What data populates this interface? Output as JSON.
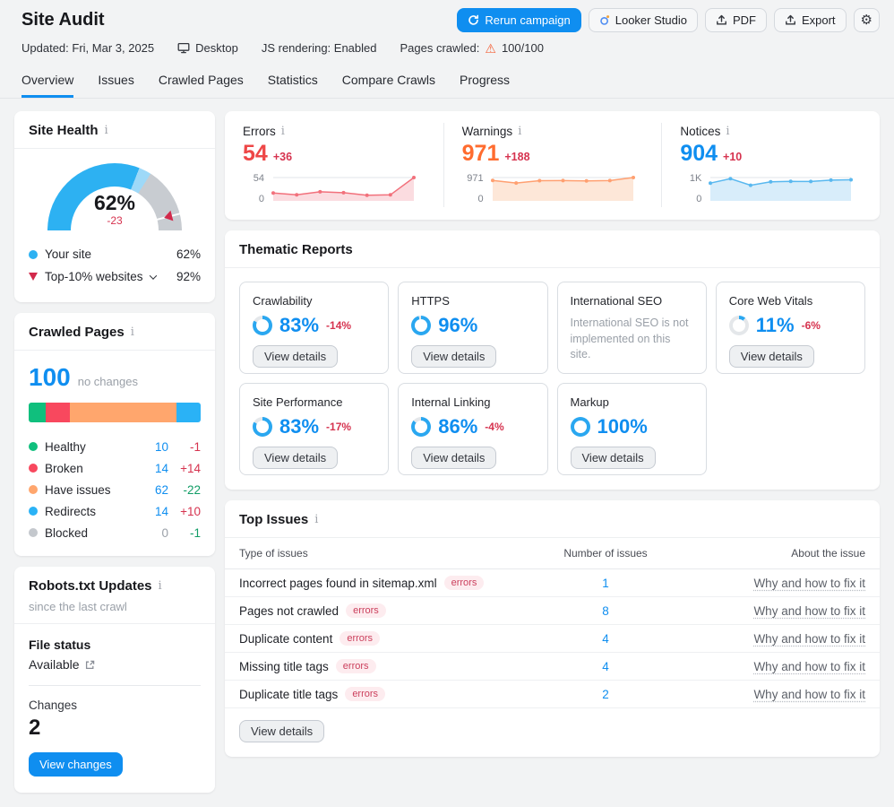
{
  "colors": {
    "accent": "#0f8ef0",
    "ring_on": "#2aa7f0",
    "ring_off": "#e4e7ea",
    "red": "#d6334f",
    "green": "#119d66",
    "gray": "#9aa0a8"
  },
  "icons": {
    "info": "i",
    "gear": "⚙",
    "warning": "⚠"
  },
  "header": {
    "title": "Site Audit",
    "updated": "Updated: Fri, Mar 3, 2025",
    "device": "Desktop",
    "js": "JS rendering: Enabled",
    "pages_label": "Pages crawled:",
    "pages_value": "100/100",
    "rerun": "Rerun campaign",
    "looker": "Looker Studio",
    "pdf": "PDF",
    "export": "Export"
  },
  "tabs": [
    {
      "label": "Overview"
    },
    {
      "label": "Issues"
    },
    {
      "label": "Crawled Pages"
    },
    {
      "label": "Statistics"
    },
    {
      "label": "Compare Crawls"
    },
    {
      "label": "Progress"
    }
  ],
  "site_health": {
    "title": "Site Health",
    "score": "62%",
    "delta": "-23",
    "gauge": {
      "value": 62,
      "secondary_to": 68,
      "benchmark": 92,
      "color": "#2db1f2",
      "secondary_color": "#9ed9f8",
      "track_color": "#c8ccd1"
    },
    "legend": [
      {
        "label": "Your site",
        "value": "62%",
        "marker_color": "#2db1f2"
      },
      {
        "label": "Top-10% websites",
        "value": "92%"
      }
    ]
  },
  "crawled_pages": {
    "title": "Crawled Pages",
    "total": "100",
    "note": "no changes",
    "segments": [
      {
        "label": "Healthy",
        "pct": 10,
        "color": "#10bf7d",
        "value": "10",
        "value_color": "#0f8ef0",
        "change": "-1",
        "change_color": "#d6334f"
      },
      {
        "label": "Broken",
        "pct": 14,
        "color": "#f8485e",
        "value": "14",
        "value_color": "#0f8ef0",
        "change": "+14",
        "change_color": "#d6334f"
      },
      {
        "label": "Have issues",
        "pct": 62,
        "color": "#ffa66d",
        "value": "62",
        "value_color": "#0f8ef0",
        "change": "-22",
        "change_color": "#119d66"
      },
      {
        "label": "Redirects",
        "pct": 14,
        "color": "#2ab2f6",
        "value": "14",
        "value_color": "#0f8ef0",
        "change": "+10",
        "change_color": "#d6334f"
      },
      {
        "label": "Blocked",
        "pct": 0,
        "color": "#c4c8cd",
        "value": "0",
        "value_color": "#9aa0a8",
        "change": "-1",
        "change_color": "#119d66"
      }
    ]
  },
  "robots": {
    "title": "Robots.txt Updates",
    "subtitle": "since the last crawl",
    "file_status_label": "File status",
    "file_status": "Available",
    "changes_label": "Changes",
    "changes": "2",
    "button": "View changes"
  },
  "summary": [
    {
      "label": "Errors",
      "value": "54",
      "delta": "+36",
      "value_color": "#ee4747",
      "axis_max": "54",
      "axis_min": "0",
      "spark": {
        "max": 54,
        "values": [
          18,
          14,
          21,
          19,
          13,
          14,
          54
        ],
        "line": "#f2717c",
        "fill": "#fbdce0"
      }
    },
    {
      "label": "Warnings",
      "value": "971",
      "delta": "+188",
      "value_color": "#ff6c2f",
      "axis_max": "971",
      "axis_min": "0",
      "spark": {
        "max": 971,
        "values": [
          850,
          745,
          840,
          845,
          830,
          845,
          971
        ],
        "line": "#ffa071",
        "fill": "#fde7d8"
      }
    },
    {
      "label": "Notices",
      "value": "904",
      "delta": "+10",
      "value_color": "#0f8ef0",
      "axis_max": "1K",
      "axis_min": "0",
      "spark": {
        "max": 1000,
        "values": [
          760,
          950,
          670,
          820,
          835,
          830,
          890,
          904
        ],
        "line": "#59b8ef",
        "fill": "#d8edfa"
      }
    }
  ],
  "thematic": {
    "title": "Thematic Reports",
    "button": "View details",
    "cards": [
      {
        "name": "Crawlability",
        "pct": 83,
        "pct_label": "83%",
        "delta": "-14%"
      },
      {
        "name": "HTTPS",
        "pct": 96,
        "pct_label": "96%"
      },
      {
        "name": "International SEO",
        "desc": "International SEO is not implemented on this site."
      },
      {
        "name": "Core Web Vitals",
        "pct": 11,
        "pct_label": "11%",
        "delta": "-6%"
      },
      {
        "name": "Site Performance",
        "pct": 83,
        "pct_label": "83%",
        "delta": "-17%"
      },
      {
        "name": "Internal Linking",
        "pct": 86,
        "pct_label": "86%",
        "delta": "-4%"
      },
      {
        "name": "Markup",
        "pct": 100,
        "pct_label": "100%"
      }
    ]
  },
  "top_issues": {
    "title": "Top Issues",
    "columns": [
      "Type of issues",
      "Number of issues",
      "About the issue"
    ],
    "badge": "errors",
    "link": "Why and how to fix it",
    "rows": [
      {
        "name": "Incorrect pages found in sitemap.xml",
        "count": "1"
      },
      {
        "name": "Pages not crawled",
        "count": "8"
      },
      {
        "name": "Duplicate content",
        "count": "4"
      },
      {
        "name": "Missing title tags",
        "count": "4"
      },
      {
        "name": "Duplicate title tags",
        "count": "2"
      }
    ],
    "button": "View details"
  }
}
